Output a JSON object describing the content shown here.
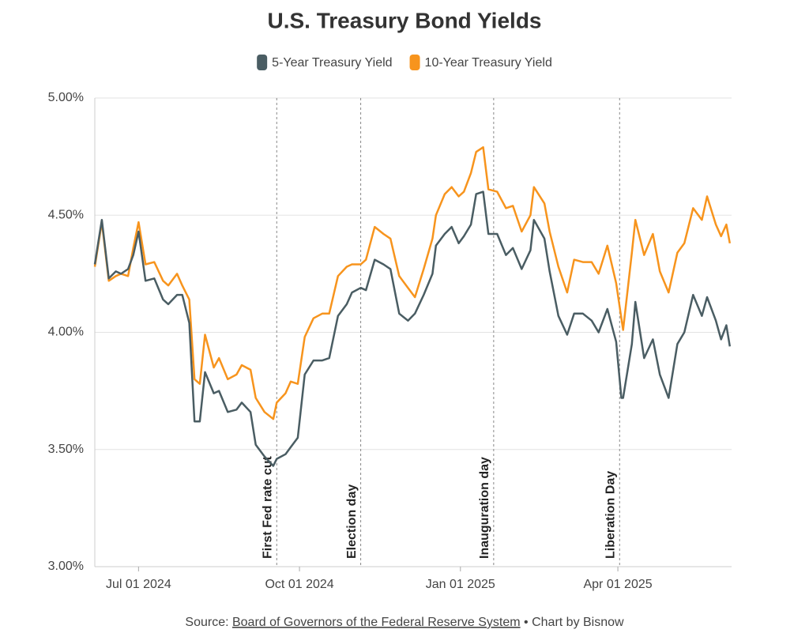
{
  "chart_data": {
    "type": "line",
    "title": "U.S. Treasury Bond Yields",
    "x": [
      "2024-06-06",
      "2024-06-10",
      "2024-06-14",
      "2024-06-18",
      "2024-06-21",
      "2024-06-25",
      "2024-06-28",
      "2024-07-01",
      "2024-07-05",
      "2024-07-10",
      "2024-07-15",
      "2024-07-18",
      "2024-07-23",
      "2024-07-26",
      "2024-07-30",
      "2024-08-02",
      "2024-08-05",
      "2024-08-08",
      "2024-08-13",
      "2024-08-16",
      "2024-08-21",
      "2024-08-26",
      "2024-08-29",
      "2024-09-03",
      "2024-09-06",
      "2024-09-11",
      "2024-09-16",
      "2024-09-18",
      "2024-09-23",
      "2024-09-26",
      "2024-09-30",
      "2024-10-04",
      "2024-10-09",
      "2024-10-14",
      "2024-10-18",
      "2024-10-23",
      "2024-10-28",
      "2024-10-31",
      "2024-11-05",
      "2024-11-08",
      "2024-11-13",
      "2024-11-18",
      "2024-11-22",
      "2024-11-27",
      "2024-12-02",
      "2024-12-06",
      "2024-12-11",
      "2024-12-16",
      "2024-12-18",
      "2024-12-23",
      "2024-12-27",
      "2024-12-31",
      "2025-01-03",
      "2025-01-07",
      "2025-01-10",
      "2025-01-14",
      "2025-01-17",
      "2025-01-22",
      "2025-01-27",
      "2025-01-31",
      "2025-02-05",
      "2025-02-10",
      "2025-02-12",
      "2025-02-18",
      "2025-02-21",
      "2025-02-26",
      "2025-03-03",
      "2025-03-07",
      "2025-03-12",
      "2025-03-17",
      "2025-03-21",
      "2025-03-26",
      "2025-03-31",
      "2025-04-03",
      "2025-04-04",
      "2025-04-09",
      "2025-04-11",
      "2025-04-16",
      "2025-04-21",
      "2025-04-25",
      "2025-04-30",
      "2025-05-05",
      "2025-05-09",
      "2025-05-14",
      "2025-05-19",
      "2025-05-22",
      "2025-05-27",
      "2025-05-30",
      "2025-06-02",
      "2025-06-04"
    ],
    "series": [
      {
        "name": "5-Year Treasury Yield",
        "color": "#4a5d63",
        "values": [
          4.29,
          4.48,
          4.23,
          4.26,
          4.25,
          4.27,
          4.33,
          4.43,
          4.22,
          4.23,
          4.14,
          4.12,
          4.16,
          4.16,
          4.04,
          3.62,
          3.62,
          3.83,
          3.74,
          3.75,
          3.66,
          3.67,
          3.7,
          3.66,
          3.52,
          3.47,
          3.43,
          3.46,
          3.48,
          3.51,
          3.55,
          3.82,
          3.88,
          3.88,
          3.89,
          4.07,
          4.12,
          4.17,
          4.19,
          4.18,
          4.31,
          4.29,
          4.27,
          4.08,
          4.05,
          4.08,
          4.16,
          4.25,
          4.37,
          4.42,
          4.45,
          4.38,
          4.41,
          4.46,
          4.59,
          4.6,
          4.42,
          4.42,
          4.33,
          4.36,
          4.27,
          4.35,
          4.48,
          4.4,
          4.26,
          4.07,
          3.99,
          4.08,
          4.08,
          4.05,
          4.0,
          4.1,
          3.96,
          3.72,
          3.72,
          3.95,
          4.13,
          3.89,
          3.97,
          3.82,
          3.72,
          3.95,
          4.0,
          4.16,
          4.07,
          4.15,
          4.05,
          3.97,
          4.03,
          3.94
        ]
      },
      {
        "name": "10-Year Treasury Yield",
        "color": "#f7941d",
        "values": [
          4.28,
          4.47,
          4.22,
          4.24,
          4.25,
          4.24,
          4.36,
          4.47,
          4.29,
          4.3,
          4.22,
          4.2,
          4.25,
          4.2,
          4.14,
          3.8,
          3.78,
          3.99,
          3.85,
          3.89,
          3.8,
          3.82,
          3.86,
          3.84,
          3.72,
          3.66,
          3.63,
          3.7,
          3.74,
          3.79,
          3.78,
          3.98,
          4.06,
          4.08,
          4.08,
          4.24,
          4.28,
          4.29,
          4.29,
          4.31,
          4.45,
          4.42,
          4.4,
          4.24,
          4.19,
          4.15,
          4.27,
          4.4,
          4.5,
          4.59,
          4.62,
          4.58,
          4.6,
          4.68,
          4.77,
          4.79,
          4.61,
          4.6,
          4.53,
          4.54,
          4.43,
          4.5,
          4.62,
          4.55,
          4.43,
          4.28,
          4.17,
          4.31,
          4.3,
          4.3,
          4.25,
          4.37,
          4.21,
          4.06,
          4.01,
          4.34,
          4.48,
          4.33,
          4.42,
          4.26,
          4.17,
          4.34,
          4.38,
          4.53,
          4.48,
          4.58,
          4.46,
          4.41,
          4.46,
          4.38
        ]
      }
    ],
    "xlim": [
      "2024-06-06",
      "2025-06-05"
    ],
    "xticks": [
      {
        "value": "2024-07-01",
        "label": "Jul 01 2024"
      },
      {
        "value": "2024-10-01",
        "label": "Oct 01 2024"
      },
      {
        "value": "2025-01-01",
        "label": "Jan 01 2025"
      },
      {
        "value": "2025-04-01",
        "label": "Apr 01 2025"
      }
    ],
    "ylim": [
      3,
      5
    ],
    "yticks": [
      {
        "value": 3,
        "label": "3.00%"
      },
      {
        "value": 3.5,
        "label": "3.50%"
      },
      {
        "value": 4,
        "label": "4.00%"
      },
      {
        "value": 4.5,
        "label": "4.50%"
      },
      {
        "value": 5,
        "label": "5.00%"
      }
    ],
    "grid": true,
    "legend": "top",
    "annotations": [
      {
        "x": "2024-09-18",
        "label": "First Fed rate cut"
      },
      {
        "x": "2024-11-05",
        "label": "Election day"
      },
      {
        "x": "2025-01-20",
        "label": "Inauguration day"
      },
      {
        "x": "2025-04-02",
        "label": "Liberation Day"
      }
    ],
    "source": {
      "prefix": "Source:",
      "link": "Board of Governors of the Federal Reserve System",
      "suffix": "• Chart by Bisnow"
    }
  }
}
